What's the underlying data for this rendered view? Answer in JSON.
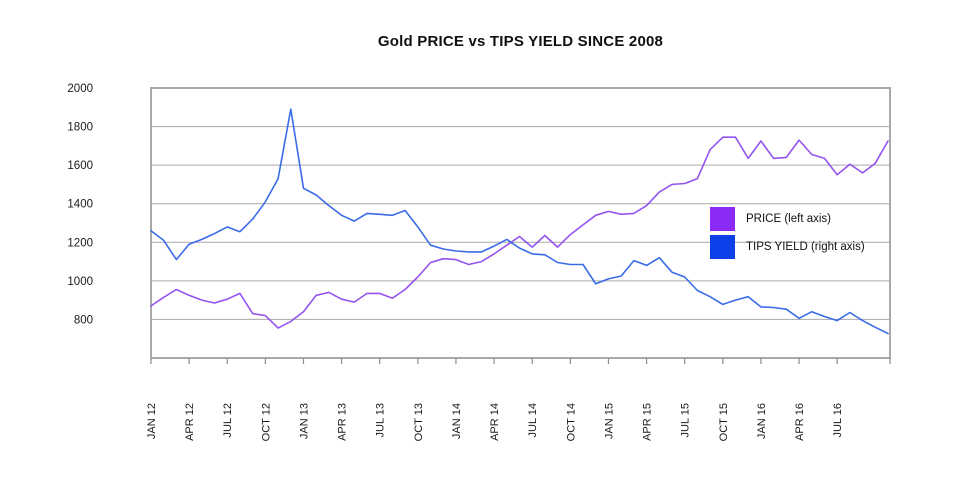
{
  "title": "Gold PRICE vs TIPS YIELD SINCE 2008",
  "legend": [
    {
      "label": "PRICE (left axis)",
      "swatch_color": "#8B2BF5"
    },
    {
      "label": "TIPS YIELD (right axis)",
      "swatch_color": "#0C41EA"
    }
  ],
  "chart_data": {
    "type": "line",
    "title": "Gold PRICE vs TIPS YIELD SINCE 2008",
    "grid": true,
    "legend_position": "inside-right",
    "x_frequency": "monthly",
    "x_tick_labels": [
      "JAN 12",
      "APR 12",
      "JUL 12",
      "OCT 12",
      "JAN 13",
      "APR 13",
      "JUL 13",
      "OCT 13",
      "JAN 14",
      "APR 14",
      "JUL 14",
      "OCT 14",
      "JAN 15",
      "APR 15",
      "JUL 15",
      "OCT 15",
      "JAN 16",
      "APR 16",
      "JUL 16"
    ],
    "y_tick_labels": [
      "2000",
      "1800",
      "1600",
      "1400",
      "1200",
      "1000",
      "800"
    ],
    "y_axis": {
      "min": 600,
      "max": 2000,
      "gridline_step": 200
    },
    "right_axis_labels_visible": false,
    "colors": {
      "price_line": "#9454F0",
      "tips_line": "#3A6BE8",
      "gridline": "#a9a9a9",
      "frame": "#a9a9a9",
      "tick": "#8c8c8c",
      "axis_text": "#1a1a1a"
    },
    "series": [
      {
        "name": "PRICE (left axis)",
        "axis": "left",
        "values": [
          870,
          915,
          955,
          925,
          900,
          885,
          905,
          935,
          830,
          820,
          755,
          790,
          840,
          925,
          940,
          905,
          890,
          935,
          935,
          910,
          955,
          1020,
          1095,
          1115,
          1110,
          1085,
          1100,
          1140,
          1185,
          1230,
          1175,
          1235,
          1175,
          1240,
          1290,
          1340,
          1360,
          1345,
          1350,
          1390,
          1460,
          1500,
          1505,
          1530,
          1680,
          1745,
          1745,
          1635,
          1725,
          1635,
          1640,
          1730,
          1655,
          1635,
          1550,
          1605,
          1560,
          1610,
          1725
        ]
      },
      {
        "name": "TIPS YIELD (right axis)",
        "axis": "right",
        "values": [
          1260,
          1210,
          1110,
          1190,
          1215,
          1245,
          1280,
          1255,
          1320,
          1410,
          1530,
          1890,
          1480,
          1445,
          1390,
          1340,
          1310,
          1350,
          1345,
          1340,
          1365,
          1280,
          1185,
          1165,
          1155,
          1150,
          1150,
          1180,
          1215,
          1170,
          1140,
          1135,
          1095,
          1085,
          1085,
          985,
          1010,
          1025,
          1105,
          1080,
          1120,
          1045,
          1020,
          950,
          918,
          878,
          900,
          918,
          865,
          862,
          853,
          806,
          840,
          815,
          794,
          836,
          794,
          759,
          727
        ]
      }
    ]
  }
}
